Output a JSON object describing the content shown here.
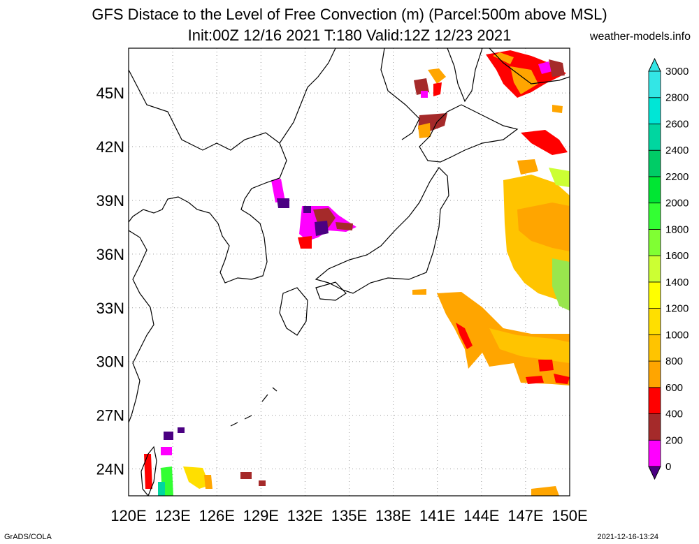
{
  "header": {
    "title": "GFS Distace to the Level of Free Convection (m) (Parcel:500m above MSL)",
    "subtitle": "Init:00Z 12/16 2021 T:180 Valid:12Z 12/23 2021",
    "site": "weather-models.info"
  },
  "footer": {
    "left": "GrADS/COLA",
    "right": "2021-12-16-13:24"
  },
  "map": {
    "lon_labels": [
      "120E",
      "123E",
      "126E",
      "129E",
      "132E",
      "135E",
      "138E",
      "141E",
      "144E",
      "147E",
      "150E"
    ],
    "lat_labels": [
      "45N",
      "42N",
      "39N",
      "36N",
      "33N",
      "30N",
      "27N",
      "24N"
    ],
    "lat_values": [
      45,
      42,
      39,
      36,
      33,
      30,
      27,
      24
    ],
    "lon_range": [
      120,
      150
    ],
    "lat_range": [
      22.5,
      47.5
    ],
    "grid": "dotted"
  },
  "colorbar": {
    "levels": [
      "0",
      "200",
      "400",
      "600",
      "800",
      "1000",
      "1200",
      "1400",
      "1600",
      "1800",
      "2000",
      "2200",
      "2400",
      "2600",
      "2800",
      "3000"
    ],
    "colors": [
      "#4b0082",
      "#ff00ff",
      "#a52a2a",
      "#ff0000",
      "#ffa500",
      "#ffc400",
      "#ffdf00",
      "#ffff00",
      "#ccff33",
      "#80ff33",
      "#33ff33",
      "#00e633",
      "#00cc66",
      "#00d6a0",
      "#00e6d6",
      "#33e6e6"
    ]
  },
  "colors": {
    "coast": "#000000",
    "grid": "#9a9a9a"
  }
}
